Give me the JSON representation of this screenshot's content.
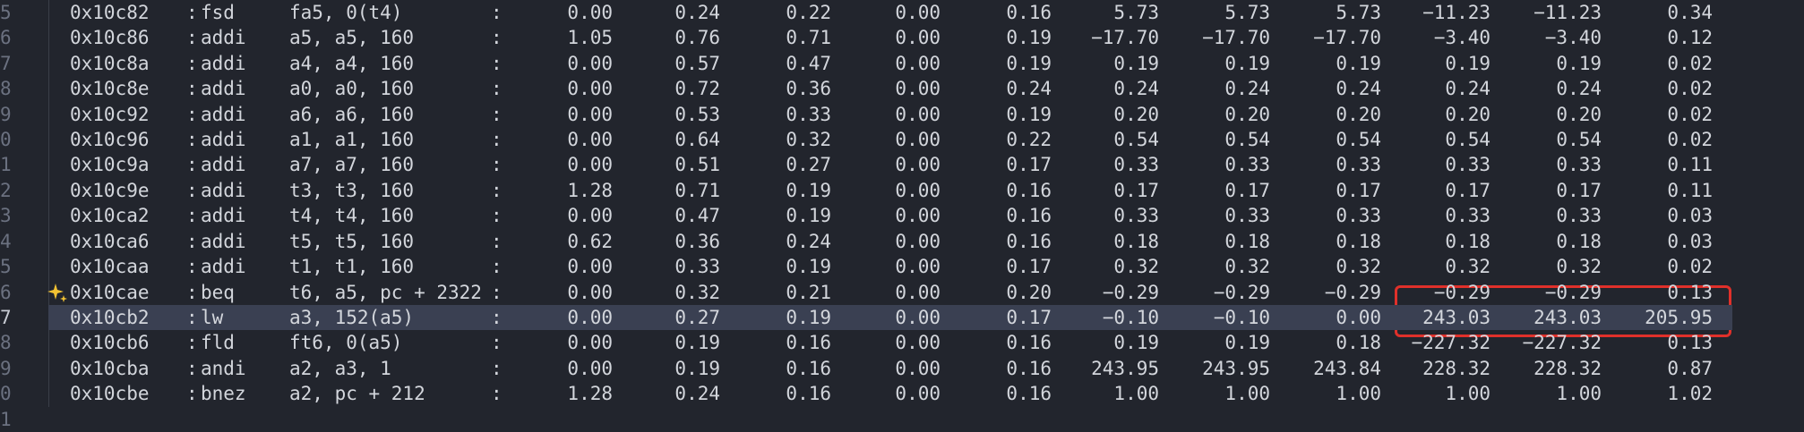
{
  "rows": [
    {
      "line": "5",
      "addr": "0x10c82",
      "sep": ":",
      "op": "fsd",
      "args": "fa5, 0(t4)",
      "colon": ":",
      "v": [
        "0.00",
        "0.24",
        "0.22",
        "0.00",
        "0.16",
        "5.73",
        "5.73",
        "5.73",
        "-11.23",
        "-11.23",
        "0.34"
      ]
    },
    {
      "line": "6",
      "addr": "0x10c86",
      "sep": ":",
      "op": "addi",
      "args": "a5, a5, 160",
      "colon": ":",
      "v": [
        "1.05",
        "0.76",
        "0.71",
        "0.00",
        "0.19",
        "-17.70",
        "-17.70",
        "-17.70",
        "-3.40",
        "-3.40",
        "0.12"
      ]
    },
    {
      "line": "7",
      "addr": "0x10c8a",
      "sep": ":",
      "op": "addi",
      "args": "a4, a4, 160",
      "colon": ":",
      "v": [
        "0.00",
        "0.57",
        "0.47",
        "0.00",
        "0.19",
        "0.19",
        "0.19",
        "0.19",
        "0.19",
        "0.19",
        "0.02"
      ]
    },
    {
      "line": "8",
      "addr": "0x10c8e",
      "sep": ":",
      "op": "addi",
      "args": "a0, a0, 160",
      "colon": ":",
      "v": [
        "0.00",
        "0.72",
        "0.36",
        "0.00",
        "0.24",
        "0.24",
        "0.24",
        "0.24",
        "0.24",
        "0.24",
        "0.02"
      ]
    },
    {
      "line": "9",
      "addr": "0x10c92",
      "sep": ":",
      "op": "addi",
      "args": "a6, a6, 160",
      "colon": ":",
      "v": [
        "0.00",
        "0.53",
        "0.33",
        "0.00",
        "0.19",
        "0.20",
        "0.20",
        "0.20",
        "0.20",
        "0.20",
        "0.02"
      ]
    },
    {
      "line": "0",
      "addr": "0x10c96",
      "sep": ":",
      "op": "addi",
      "args": "a1, a1, 160",
      "colon": ":",
      "v": [
        "0.00",
        "0.64",
        "0.32",
        "0.00",
        "0.22",
        "0.54",
        "0.54",
        "0.54",
        "0.54",
        "0.54",
        "0.02"
      ]
    },
    {
      "line": "1",
      "addr": "0x10c9a",
      "sep": ":",
      "op": "addi",
      "args": "a7, a7, 160",
      "colon": ":",
      "v": [
        "0.00",
        "0.51",
        "0.27",
        "0.00",
        "0.17",
        "0.33",
        "0.33",
        "0.33",
        "0.33",
        "0.33",
        "0.11"
      ]
    },
    {
      "line": "2",
      "addr": "0x10c9e",
      "sep": ":",
      "op": "addi",
      "args": "t3, t3, 160",
      "colon": ":",
      "v": [
        "1.28",
        "0.71",
        "0.19",
        "0.00",
        "0.16",
        "0.17",
        "0.17",
        "0.17",
        "0.17",
        "0.17",
        "0.11"
      ]
    },
    {
      "line": "3",
      "addr": "0x10ca2",
      "sep": ":",
      "op": "addi",
      "args": "t4, t4, 160",
      "colon": ":",
      "v": [
        "0.00",
        "0.47",
        "0.19",
        "0.00",
        "0.16",
        "0.33",
        "0.33",
        "0.33",
        "0.33",
        "0.33",
        "0.03"
      ]
    },
    {
      "line": "4",
      "addr": "0x10ca6",
      "sep": ":",
      "op": "addi",
      "args": "t5, t5, 160",
      "colon": ":",
      "v": [
        "0.62",
        "0.36",
        "0.24",
        "0.00",
        "0.16",
        "0.18",
        "0.18",
        "0.18",
        "0.18",
        "0.18",
        "0.03"
      ]
    },
    {
      "line": "5",
      "addr": "0x10caa",
      "sep": ":",
      "op": "addi",
      "args": "t1, t1, 160",
      "colon": ":",
      "v": [
        "0.00",
        "0.33",
        "0.19",
        "0.00",
        "0.17",
        "0.32",
        "0.32",
        "0.32",
        "0.32",
        "0.32",
        "0.02"
      ]
    },
    {
      "line": "6",
      "addr": "0x10cae",
      "sep": ":",
      "op": "beq",
      "args": "t6, a5, pc + 2322",
      "colon": ":",
      "v": [
        "0.00",
        "0.32",
        "0.21",
        "0.00",
        "0.20",
        "-0.29",
        "-0.29",
        "-0.29",
        "-0.29",
        "-0.29",
        "0.13"
      ]
    },
    {
      "line": "7",
      "addr": "0x10cb2",
      "sep": ":",
      "op": "lw",
      "args": "a3, 152(a5)",
      "colon": ":",
      "v": [
        "0.00",
        "0.27",
        "0.19",
        "0.00",
        "0.17",
        "-0.10",
        "-0.10",
        "0.00",
        "243.03",
        "243.03",
        "205.95"
      ]
    },
    {
      "line": "8",
      "addr": "0x10cb6",
      "sep": ":",
      "op": "fld",
      "args": "ft6, 0(a5)",
      "colon": ":",
      "v": [
        "0.00",
        "0.19",
        "0.16",
        "0.00",
        "0.16",
        "0.19",
        "0.19",
        "0.18",
        "-227.32",
        "-227.32",
        "0.13"
      ]
    },
    {
      "line": "9",
      "addr": "0x10cba",
      "sep": ":",
      "op": "andi",
      "args": "a2, a3, 1",
      "colon": ":",
      "v": [
        "0.00",
        "0.19",
        "0.16",
        "0.00",
        "0.16",
        "243.95",
        "243.95",
        "243.84",
        "228.32",
        "228.32",
        "0.87"
      ]
    },
    {
      "line": "0",
      "addr": "0x10cbe",
      "sep": ":",
      "op": "bnez",
      "args": "a2, pc + 212",
      "colon": ":",
      "v": [
        "1.28",
        "0.24",
        "0.16",
        "0.00",
        "0.16",
        "1.00",
        "1.00",
        "1.00",
        "1.00",
        "1.00",
        "1.02"
      ]
    }
  ],
  "trailing_line_number": "1",
  "current_row_index": 12,
  "ai_hint_row_index": 11,
  "colors": {
    "background": "#22252d",
    "current_line": "#3a4052",
    "highlight_border": "#e0302a",
    "sparkle": "#f2c233"
  }
}
